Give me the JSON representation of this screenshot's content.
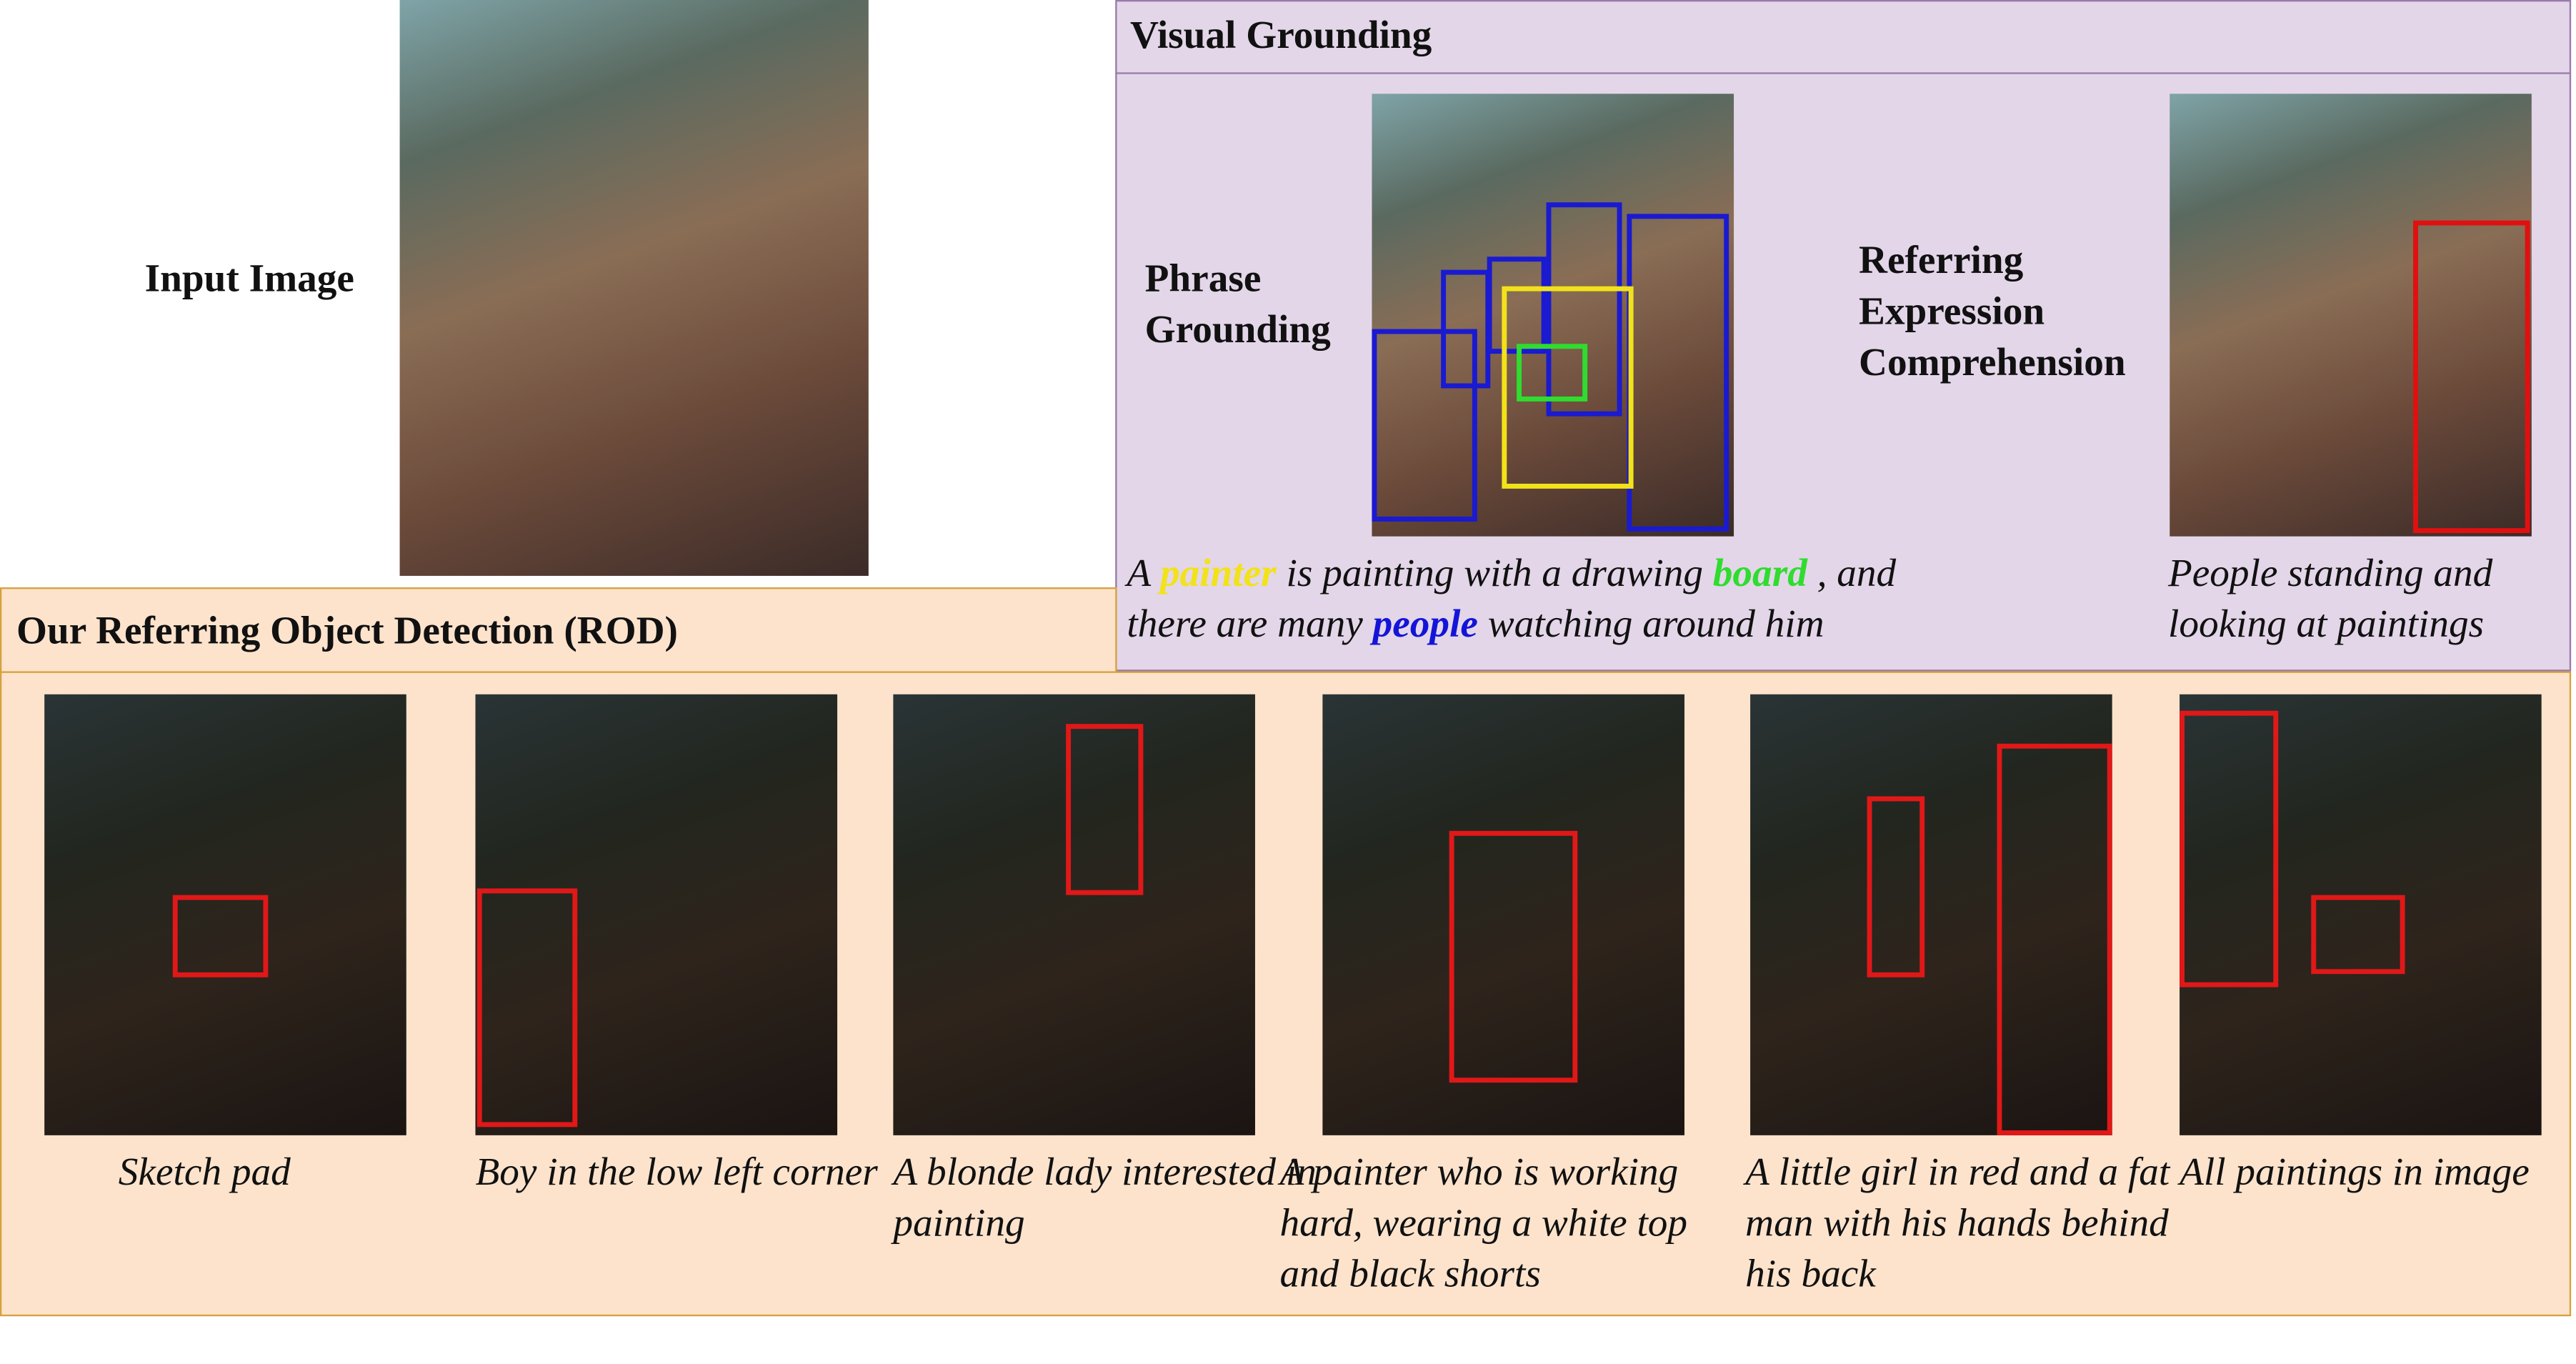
{
  "input_image": {
    "label": "Input Image"
  },
  "visual_grounding": {
    "title": "Visual Grounding",
    "phrase_grounding": {
      "label": "Phrase Grounding",
      "caption": [
        {
          "text": "A "
        },
        {
          "text": "painter",
          "color": "#f2e21a"
        },
        {
          "text": " is painting with a drawing "
        },
        {
          "text": "board",
          "color": "#2fdc2f"
        },
        {
          "text": " , and there are many "
        },
        {
          "text": "people",
          "color": "#1414d8"
        },
        {
          "text": " watching around him"
        }
      ]
    },
    "referring_expression_comprehension": {
      "label": "Referring Expression Comprehension",
      "caption": "People standing and looking at paintings"
    }
  },
  "rod": {
    "title": "Our Referring Object Detection (ROD)",
    "examples": [
      {
        "caption": "Sketch pad"
      },
      {
        "caption": "Boy in the low left corner"
      },
      {
        "caption": "A blonde lady interested in painting"
      },
      {
        "caption": "A painter who is working hard, wearing a white top and black shorts"
      },
      {
        "caption": "A little girl in red and a fat man with his hands behind his back"
      },
      {
        "caption": "All paintings in image"
      }
    ]
  }
}
